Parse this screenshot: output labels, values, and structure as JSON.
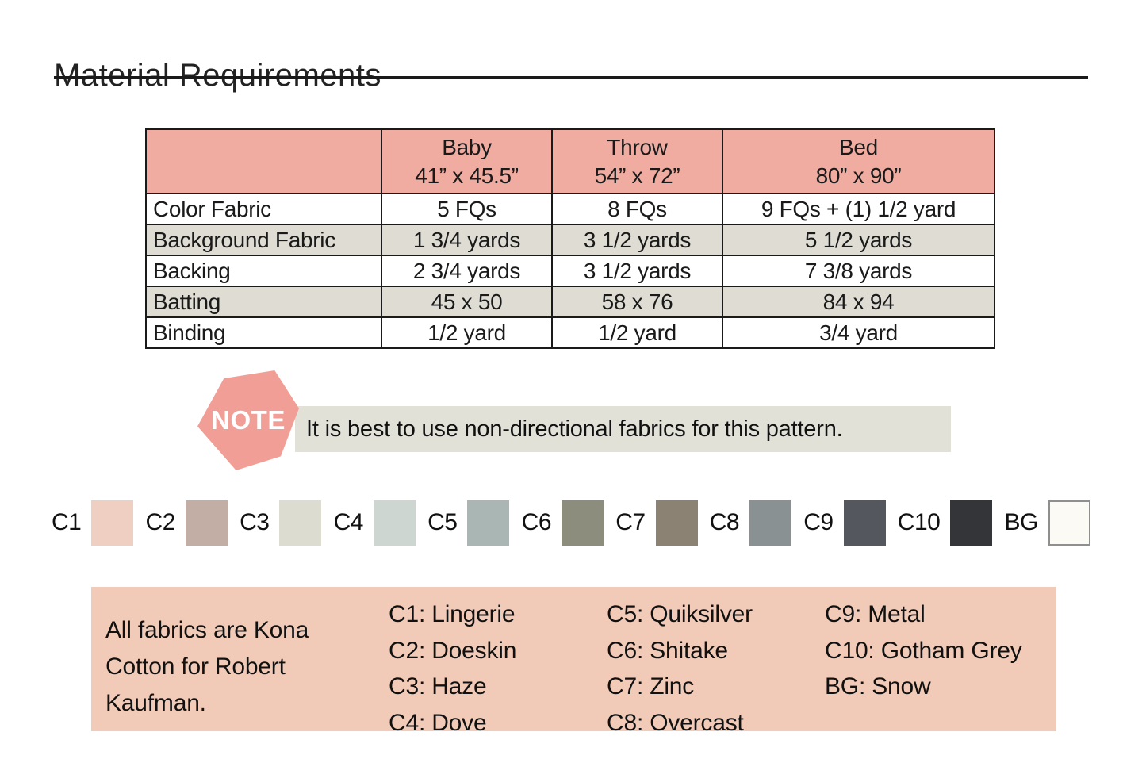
{
  "page": {
    "title": "Material Requirements"
  },
  "table": {
    "columns": [
      {
        "name": "Baby",
        "size": "41” x 45.5”"
      },
      {
        "name": "Throw",
        "size": "54” x 72”"
      },
      {
        "name": "Bed",
        "size": "80” x 90”"
      }
    ],
    "rows": [
      {
        "label": "Color Fabric",
        "cells": [
          "5 FQs",
          "8 FQs",
          "9 FQs + (1) 1/2 yard"
        ]
      },
      {
        "label": "Background Fabric",
        "cells": [
          "1 3/4 yards",
          "3 1/2 yards",
          "5 1/2 yards"
        ]
      },
      {
        "label": "Backing",
        "cells": [
          "2 3/4 yards",
          "3 1/2 yards",
          "7 3/8  yards"
        ]
      },
      {
        "label": "Batting",
        "cells": [
          "45 x 50",
          "58 x 76",
          "84 x 94"
        ]
      },
      {
        "label": "Binding",
        "cells": [
          "1/2 yard",
          "1/2 yard",
          "3/4 yard"
        ]
      }
    ]
  },
  "note": {
    "badge": "NOTE",
    "text": "It is best to use non-directional fabrics for this pattern."
  },
  "swatches": [
    {
      "label": "C1",
      "color": "#eecfc2"
    },
    {
      "label": "C2",
      "color": "#c2aea5"
    },
    {
      "label": "C3",
      "color": "#dcdcd0"
    },
    {
      "label": "C4",
      "color": "#cdd6d1"
    },
    {
      "label": "C5",
      "color": "#a9b6b3"
    },
    {
      "label": "C6",
      "color": "#8c8d7c"
    },
    {
      "label": "C7",
      "color": "#8b8274"
    },
    {
      "label": "C8",
      "color": "#8a9192"
    },
    {
      "label": "C9",
      "color": "#54585e"
    },
    {
      "label": "C10",
      "color": "#333539"
    },
    {
      "label": "BG",
      "color": "#fbfaf4"
    }
  ],
  "legend": {
    "intro": "All fabrics are Kona Cotton for Robert Kaufman.",
    "columns": [
      [
        "C1: Lingerie",
        "C2: Doeskin",
        "C3: Haze",
        "C4: Dove"
      ],
      [
        "C5: Quiksilver",
        "C6: Shitake",
        "C7: Zinc",
        "C8: Overcast"
      ],
      [
        "C9: Metal",
        "C10: Gotham Grey",
        "BG: Snow"
      ]
    ]
  },
  "colors": {
    "header_pink": "#f0aca1",
    "row_alt_gray": "#dfddd3",
    "note_hex_pink": "#f09e96",
    "note_bar_gray": "#e2e1d8",
    "legend_box_pink": "#f2cbb8",
    "bg_swatch_border": "#8f8f8f"
  }
}
